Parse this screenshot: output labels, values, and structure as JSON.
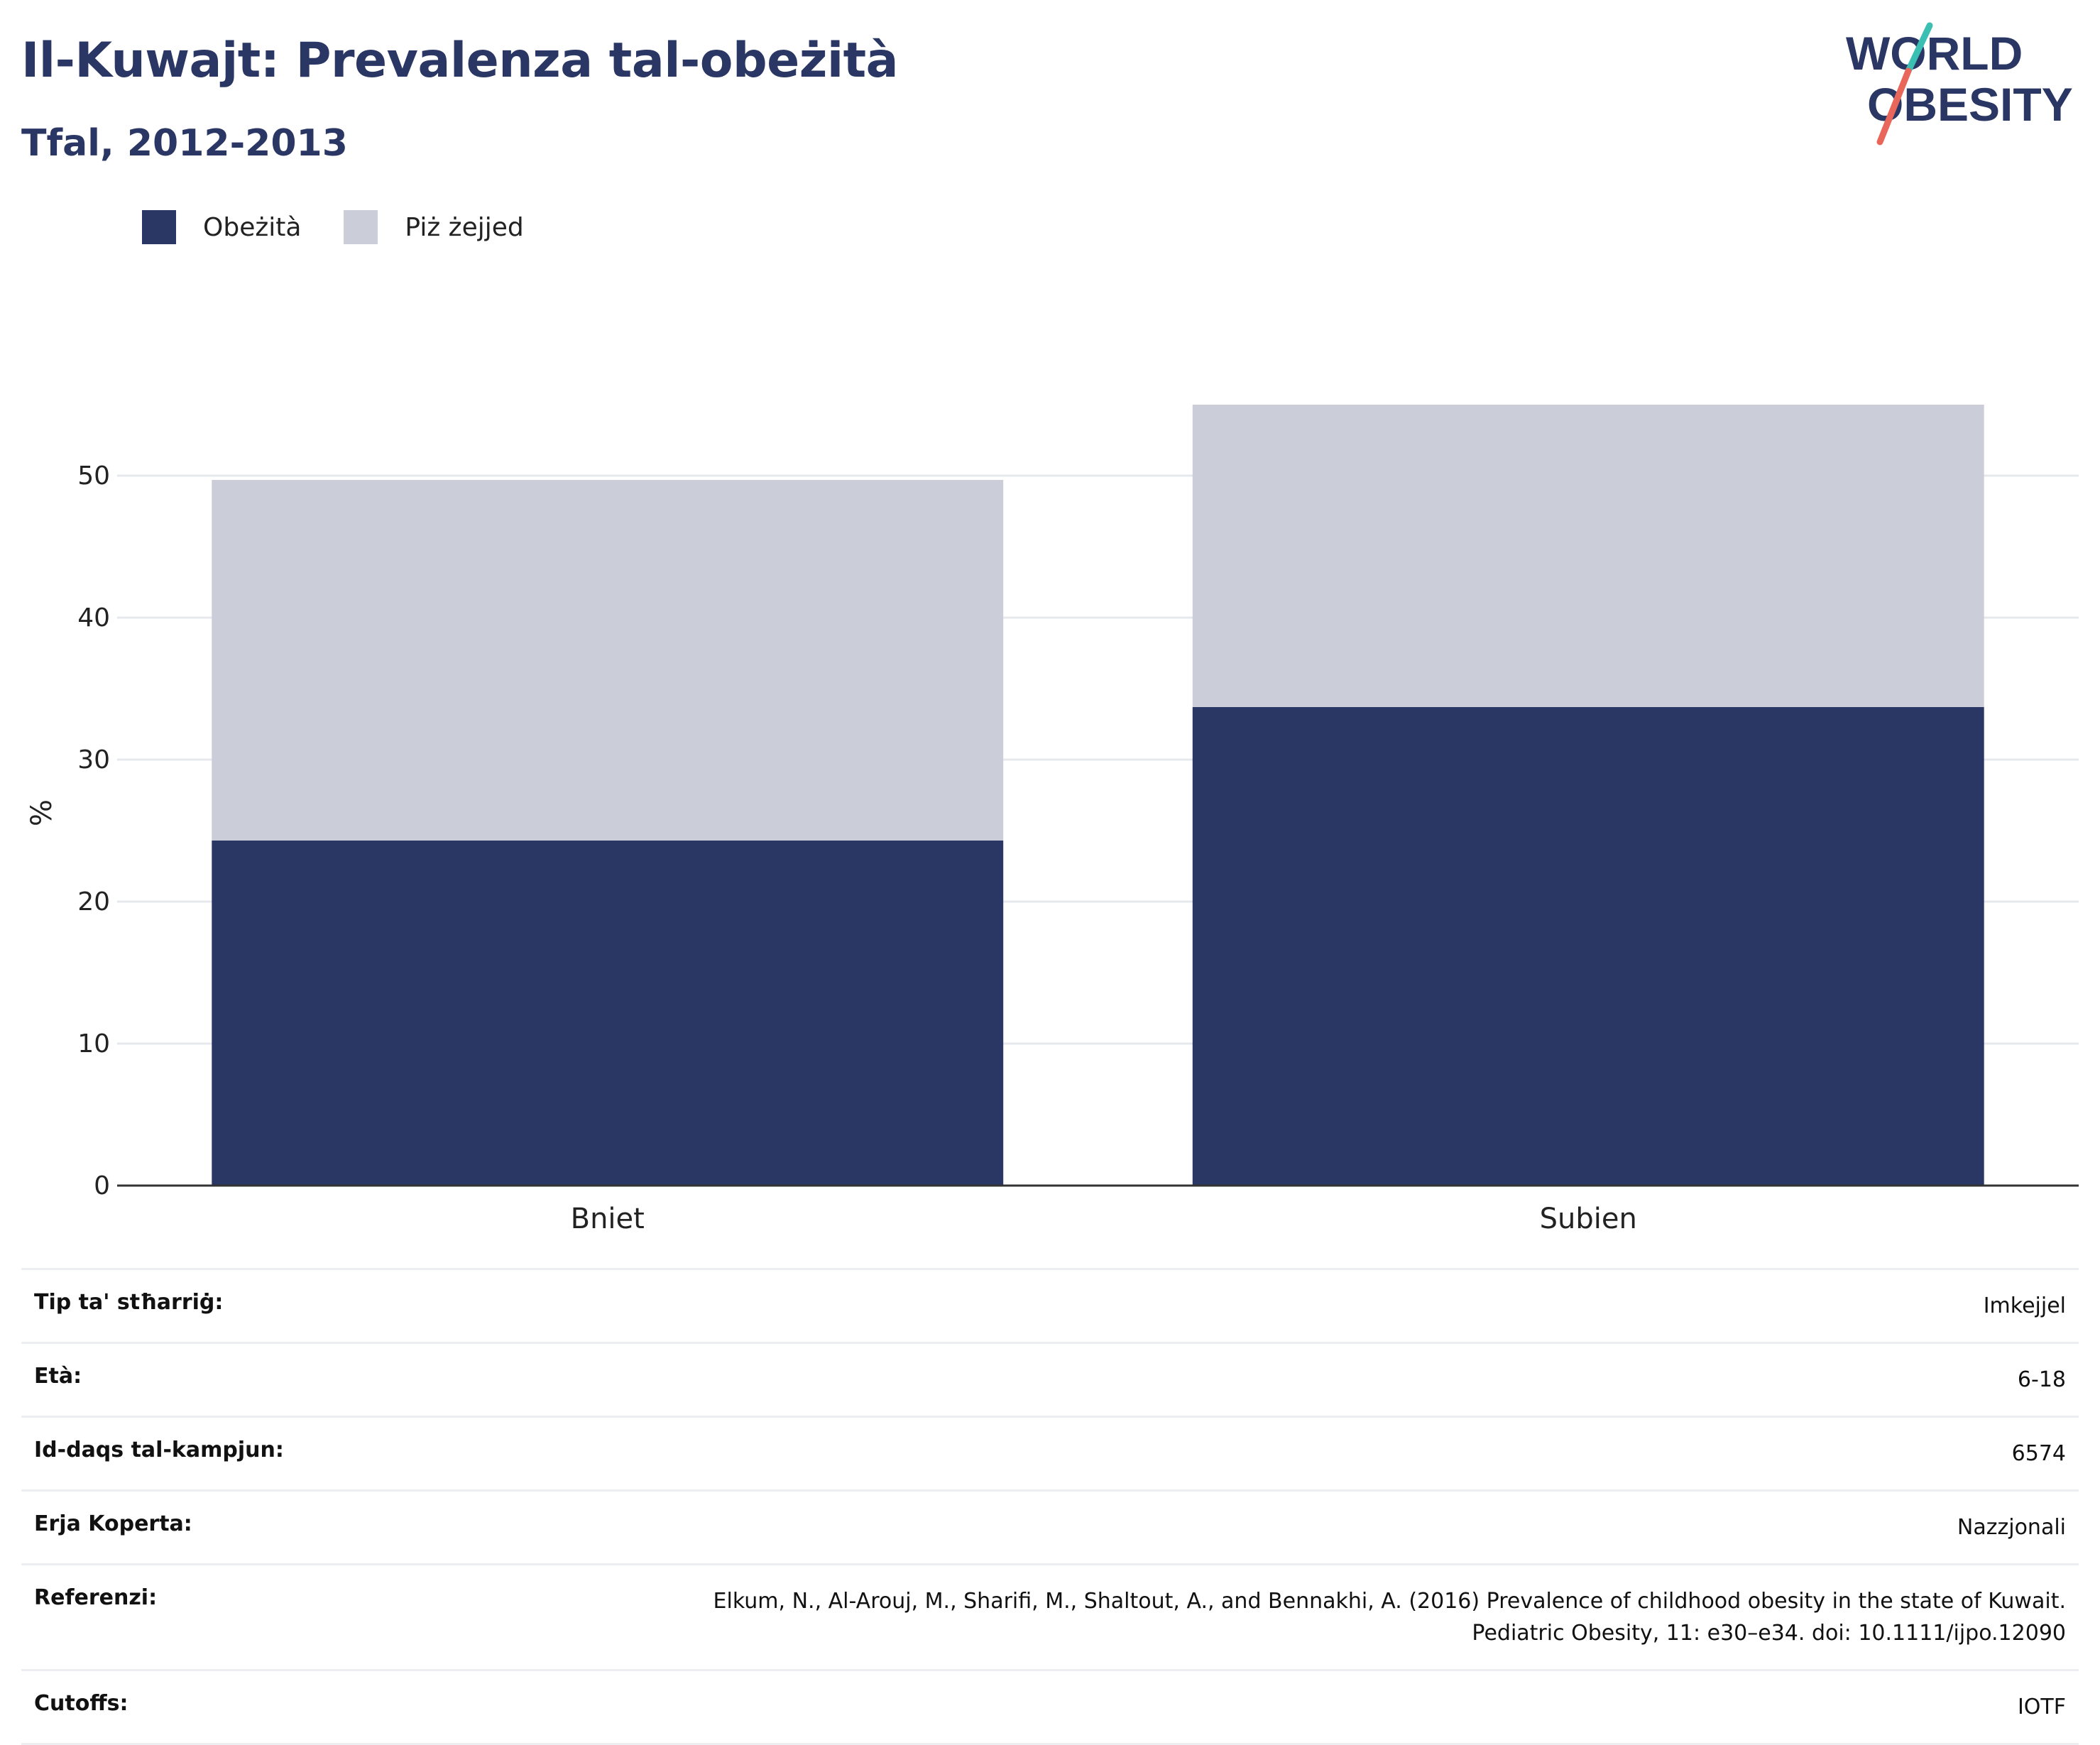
{
  "header": {
    "title": "Il-Kuwajt: Prevalenza tal-obeżità",
    "subtitle": "Tfal, 2012-2013"
  },
  "logo": {
    "line1": "WORLD",
    "line2": "OBESITY",
    "colors": {
      "text": "#2a3663",
      "slash_top": "#3bbfb2",
      "slash_bottom": "#e8675a"
    }
  },
  "colors": {
    "obesity": "#2a3663",
    "overweight": "#cbcdd8",
    "grid": "#e6e8ee",
    "axis": "#333333"
  },
  "chart_data": {
    "type": "bar",
    "stacked": true,
    "title": "",
    "xlabel": "",
    "ylabel": "%",
    "ylim": [
      0,
      57
    ],
    "yticks": [
      0,
      10,
      20,
      30,
      40,
      50
    ],
    "grid": true,
    "legend_position": "top-left",
    "categories": [
      "Bniet",
      "Subien"
    ],
    "series": [
      {
        "name": "Obeżità",
        "values": [
          24.3,
          33.7
        ],
        "color": "#2a3663"
      },
      {
        "name": "Piż żejjed",
        "values": [
          25.4,
          21.3
        ],
        "color": "#cbcdd8"
      }
    ]
  },
  "info": [
    {
      "label": "Tip ta' stħarriġ:",
      "value": "Imkejjel"
    },
    {
      "label": "Età:",
      "value": "6-18"
    },
    {
      "label": "Id-daqs tal-kampjun:",
      "value": "6574"
    },
    {
      "label": "Erja Koperta:",
      "value": "Nazzjonali"
    },
    {
      "label": "Referenzi:",
      "value": "Elkum, N., Al-Arouj, M., Sharifi, M., Shaltout, A., and Bennakhi, A. (2016) Prevalence of childhood obesity in the state of Kuwait. Pediatric Obesity, 11: e30–e34. doi: 10.1111/ijpo.12090"
    },
    {
      "label": "Cutoffs:",
      "value": "IOTF"
    }
  ]
}
